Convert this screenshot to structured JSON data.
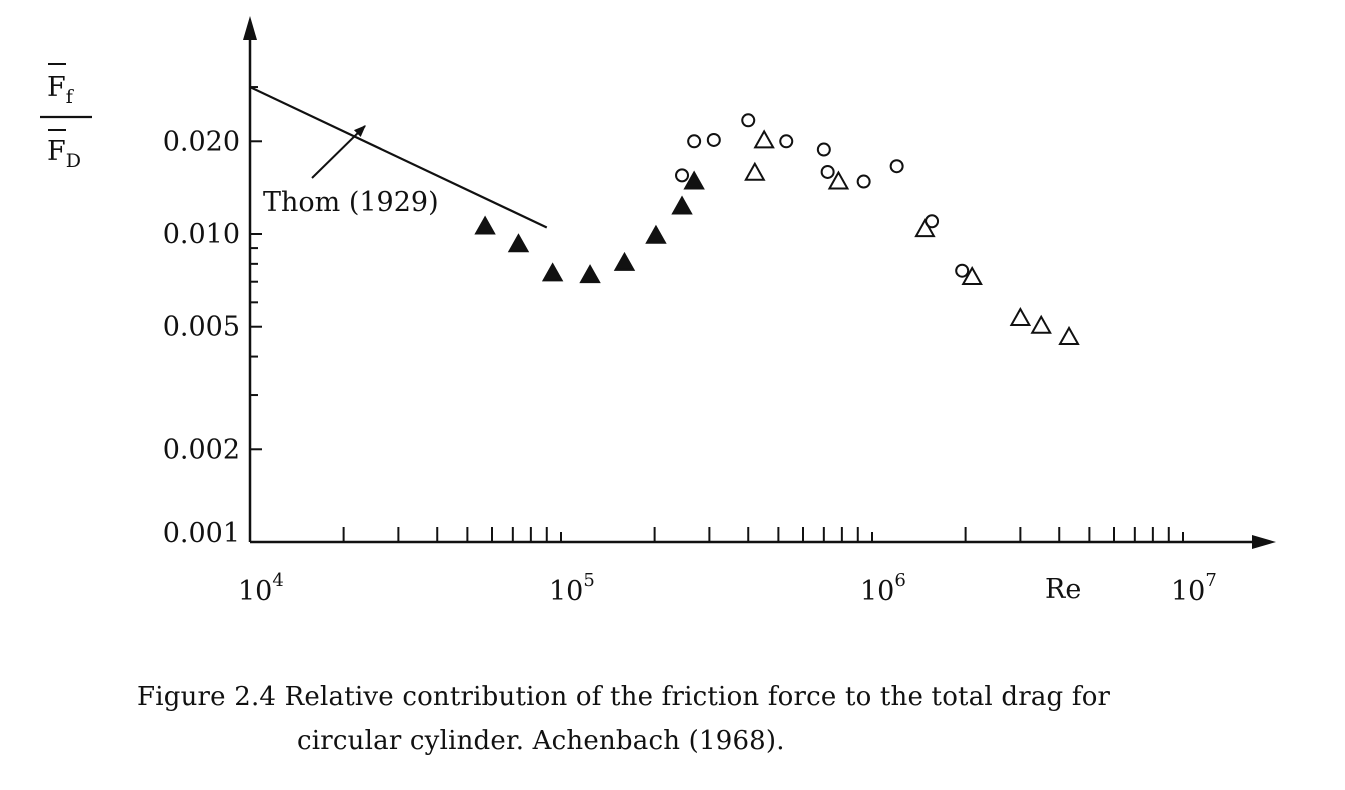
{
  "chart_data": {
    "type": "scatter",
    "title": "",
    "xlabel": "Re",
    "ylabel": {
      "numerator": "F",
      "numerator_sub": "f",
      "denominator": "F",
      "denominator_sub": "D"
    },
    "x_scale": "log",
    "y_scale": "log",
    "xlim": [
      10000,
      20000000
    ],
    "ylim": [
      0.001,
      0.04
    ],
    "x_tick_labels": [
      {
        "value": 10000,
        "base": "10",
        "exp": "4"
      },
      {
        "value": 100000,
        "base": "10",
        "exp": "5"
      },
      {
        "value": 1000000,
        "base": "10",
        "exp": "6"
      },
      {
        "value": 10000000,
        "base": "10",
        "exp": "7"
      }
    ],
    "y_tick_labels": [
      {
        "value": 0.001,
        "label": "0.001"
      },
      {
        "value": 0.002,
        "label": "0.002"
      },
      {
        "value": 0.005,
        "label": "0.005"
      },
      {
        "value": 0.01,
        "label": "0.010"
      },
      {
        "value": 0.02,
        "label": "0.020"
      }
    ],
    "series": [
      {
        "marker": "filled-triangle",
        "color": "#111111",
        "points": [
          [
            57000,
            0.0105
          ],
          [
            73000,
            0.0092
          ],
          [
            94000,
            0.0074
          ],
          [
            124000,
            0.0073
          ],
          [
            160000,
            0.008
          ],
          [
            202000,
            0.0098
          ],
          [
            245000,
            0.0122
          ],
          [
            268000,
            0.0147
          ]
        ]
      },
      {
        "marker": "open-circle",
        "color": "#111111",
        "points": [
          [
            245000,
            0.0155
          ],
          [
            268000,
            0.02
          ],
          [
            310000,
            0.0202
          ],
          [
            400000,
            0.0234
          ],
          [
            530000,
            0.02
          ],
          [
            700000,
            0.0188
          ],
          [
            720000,
            0.0159
          ],
          [
            940000,
            0.0148
          ],
          [
            1200000,
            0.0166
          ],
          [
            1560000,
            0.011
          ],
          [
            1950000,
            0.0076
          ]
        ]
      },
      {
        "marker": "open-triangle",
        "color": "#111111",
        "points": [
          [
            420000,
            0.0157
          ],
          [
            450000,
            0.02
          ],
          [
            780000,
            0.0147
          ],
          [
            1480000,
            0.0103
          ],
          [
            2100000,
            0.0072
          ],
          [
            3000000,
            0.0053
          ],
          [
            3500000,
            0.005
          ],
          [
            4300000,
            0.0046
          ]
        ]
      }
    ],
    "reference_line": {
      "label": "Thom (1929)",
      "points": [
        [
          10000,
          0.03
        ],
        [
          90000,
          0.0105
        ]
      ]
    },
    "grid": false,
    "legend": "none"
  },
  "caption": {
    "line1": "Figure 2.4  Relative contribution of the friction force to the total drag for",
    "line2": "circular cylinder. Achenbach (1968)."
  }
}
